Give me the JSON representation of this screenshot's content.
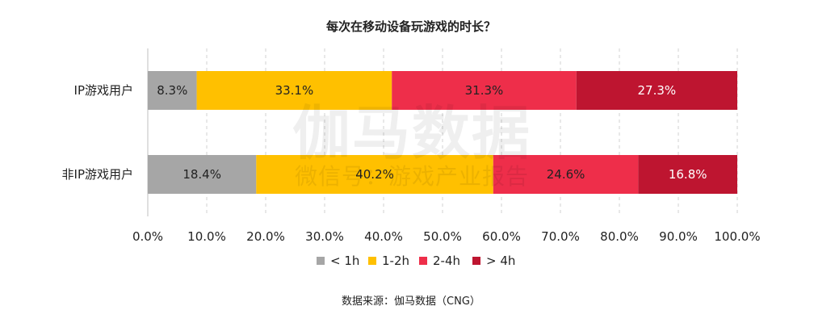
{
  "chart_data": {
    "type": "bar",
    "orientation": "horizontal",
    "stacked": true,
    "title": "每次在移动设备玩游戏的时长？",
    "categories": [
      "IP游戏用户",
      "非IP游戏用户"
    ],
    "series": [
      {
        "name": "< 1h",
        "values": [
          8.3,
          18.4
        ],
        "labels": [
          "8.3%",
          "18.4%"
        ],
        "color": "#a6a6a6",
        "label_color": "#222222"
      },
      {
        "name": "1-2h",
        "values": [
          33.1,
          40.2
        ],
        "labels": [
          "33.1%",
          "40.2%"
        ],
        "color": "#ffc000",
        "label_color": "#222222"
      },
      {
        "name": "2-4h",
        "values": [
          31.3,
          24.6
        ],
        "labels": [
          "31.3%",
          "24.6%"
        ],
        "color": "#ee2e4a",
        "label_color": "#222222"
      },
      {
        "name": "> 4h",
        "values": [
          27.3,
          16.8
        ],
        "labels": [
          "27.3%",
          "16.8%"
        ],
        "color": "#be1530",
        "label_color": "#ffffff"
      }
    ],
    "x_ticks": [
      "0.0%",
      "10.0%",
      "20.0%",
      "30.0%",
      "40.0%",
      "50.0%",
      "60.0%",
      "70.0%",
      "80.0%",
      "90.0%",
      "100.0%"
    ],
    "xlim": [
      0,
      100
    ],
    "grid": "vertical dashed",
    "legend_position": "bottom"
  },
  "source": "数据来源：伽马数据（CNG）",
  "watermark": {
    "main": "伽马数据",
    "sub": "微信号：游戏产业报告"
  }
}
